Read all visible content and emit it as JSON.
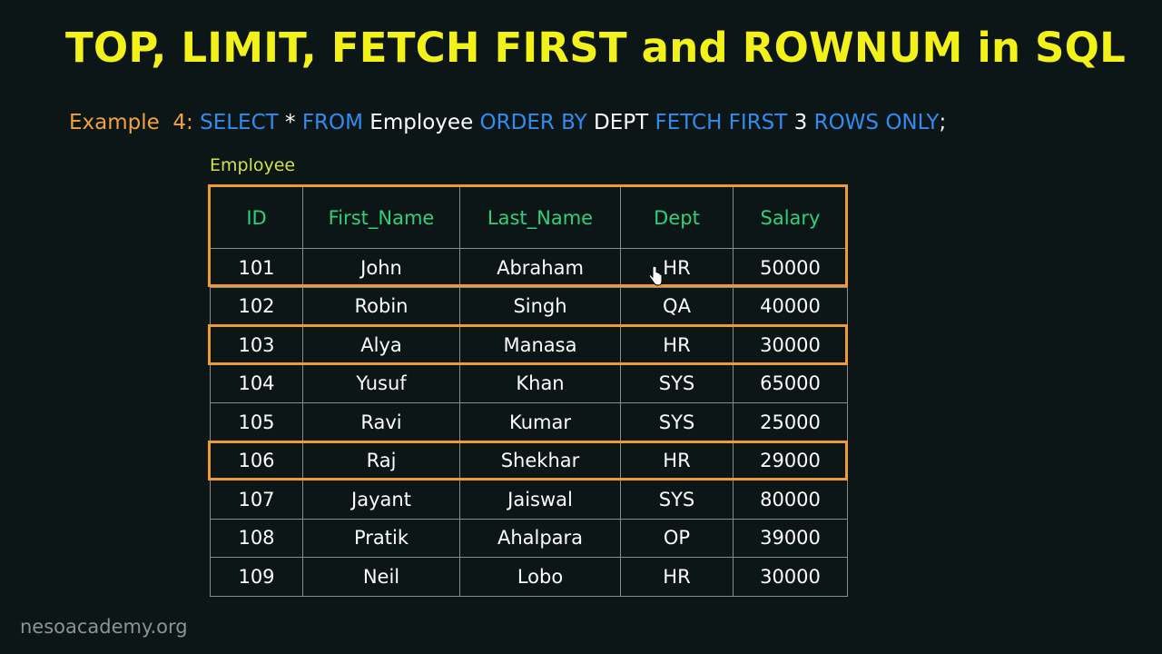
{
  "title": "TOP, LIMIT, FETCH FIRST and ROWNUM in SQL",
  "query": {
    "example_label": "Example  4:",
    "kw_select": "SELECT",
    "star": " * ",
    "kw_from": "FROM",
    "table_name": " Employee ",
    "kw_order_by": "ORDER BY",
    "column": " DEPT ",
    "kw_fetch_first": "FETCH FIRST",
    "count": " 3 ",
    "kw_rows_only": "ROWS ONLY",
    "terminator": ";"
  },
  "table": {
    "caption": "Employee",
    "headers": [
      "ID",
      "First_Name",
      "Last_Name",
      "Dept",
      "Salary"
    ],
    "rows": [
      [
        "101",
        "John",
        "Abraham",
        "HR",
        "50000"
      ],
      [
        "102",
        "Robin",
        "Singh",
        "QA",
        "40000"
      ],
      [
        "103",
        "Alya",
        "Manasa",
        "HR",
        "30000"
      ],
      [
        "104",
        "Yusuf",
        "Khan",
        "SYS",
        "65000"
      ],
      [
        "105",
        "Ravi",
        "Kumar",
        "SYS",
        "25000"
      ],
      [
        "106",
        "Raj",
        "Shekhar",
        "HR",
        "29000"
      ],
      [
        "107",
        "Jayant",
        "Jaiswal",
        "SYS",
        "80000"
      ],
      [
        "108",
        "Pratik",
        "Ahalpara",
        "OP",
        "39000"
      ],
      [
        "109",
        "Neil",
        "Lobo",
        "HR",
        "30000"
      ]
    ]
  },
  "watermark": "nesoacademy.org",
  "colors": {
    "title": "#f2f21a",
    "keyword": "#2f8cf0",
    "example": "#f2a23c",
    "header_text": "#2fd07c",
    "highlight": "#f09a35",
    "background": "#0d1616"
  }
}
